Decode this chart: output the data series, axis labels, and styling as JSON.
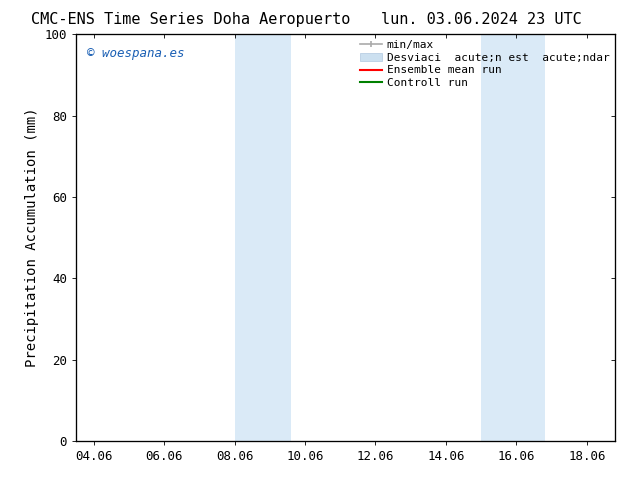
{
  "title_left": "CMC-ENS Time Series Doha Aeropuerto",
  "title_right": "lun. 03.06.2024 23 UTC",
  "ylabel": "Precipitation Accumulation (mm)",
  "xlim_dates": [
    "04.06",
    "06.06",
    "08.06",
    "10.06",
    "12.06",
    "14.06",
    "16.06",
    "18.06"
  ],
  "x_ticks_num": [
    4,
    6,
    8,
    10,
    12,
    14,
    16,
    18
  ],
  "xlim": [
    3.5,
    18.8
  ],
  "ylim": [
    0,
    100
  ],
  "yticks": [
    0,
    20,
    40,
    60,
    80,
    100
  ],
  "shaded_bands": [
    {
      "xstart": 8.0,
      "xend": 9.6
    },
    {
      "xstart": 15.0,
      "xend": 16.8
    }
  ],
  "shade_color": "#daeaf7",
  "watermark_text": "© woespana.es",
  "watermark_color": "#1a5fb4",
  "legend_label_minmax": "min/max",
  "legend_label_std": "Desviaci  acute;n est  acute;ndar",
  "legend_label_ens": "Ensemble mean run",
  "legend_label_ctrl": "Controll run",
  "legend_color_minmax": "#aaaaaa",
  "legend_color_std": "#cce0f0",
  "legend_color_ens": "red",
  "legend_color_ctrl": "green",
  "bg_color": "#ffffff",
  "plot_bg_color": "#ffffff",
  "title_fontsize": 11,
  "tick_fontsize": 9,
  "label_fontsize": 10,
  "legend_fontsize": 8
}
